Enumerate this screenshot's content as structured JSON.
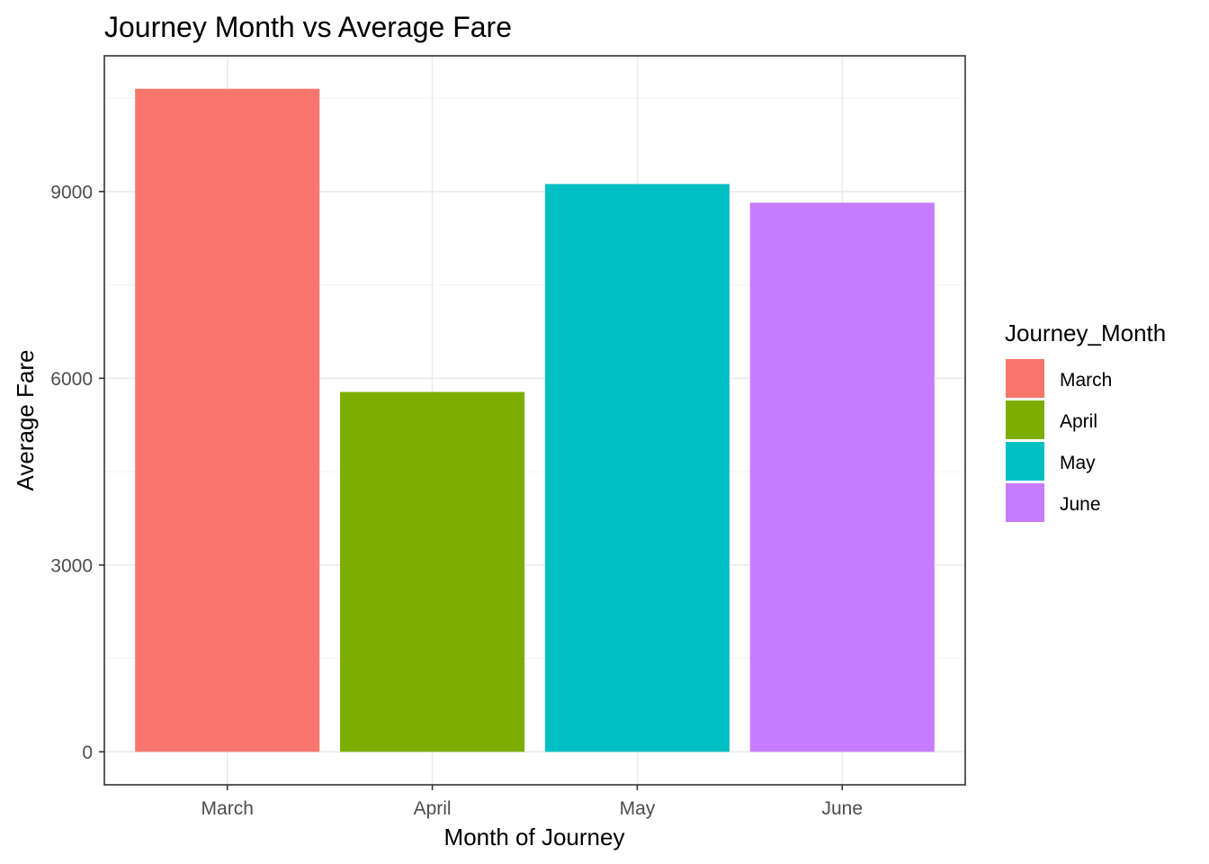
{
  "chart_data": {
    "type": "bar",
    "title": "Journey Month vs Average Fare",
    "xlabel": "Month of Journey",
    "ylabel": "Average Fare",
    "categories": [
      "March",
      "April",
      "May",
      "June"
    ],
    "values": [
      10650,
      5780,
      9120,
      8820
    ],
    "colors": [
      "#F8766D",
      "#7CAE00",
      "#00BFC4",
      "#C77CFF"
    ],
    "yticks": [
      0,
      3000,
      6000,
      9000
    ],
    "ylim": [
      -530,
      11180
    ],
    "grid": true,
    "legend": {
      "title": "Journey_Month",
      "position": "right",
      "items": [
        {
          "label": "March",
          "color": "#F8766D"
        },
        {
          "label": "April",
          "color": "#7CAE00"
        },
        {
          "label": "May",
          "color": "#00BFC4"
        },
        {
          "label": "June",
          "color": "#C77CFF"
        }
      ]
    }
  }
}
